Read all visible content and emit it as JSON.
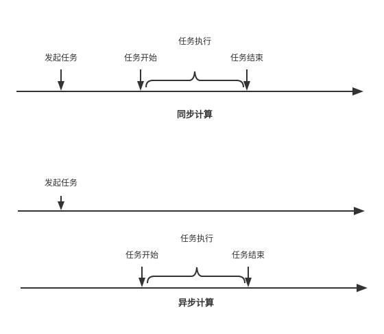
{
  "sync": {
    "title": "同步计算",
    "start_request_label": "发起任务",
    "task_start_label": "任务开始",
    "task_end_label": "任务结束",
    "execute_label": "任务执行"
  },
  "async": {
    "title": "异步计算",
    "start_request_label": "发起任务",
    "task_start_label": "任务开始",
    "task_end_label": "任务结束",
    "execute_label": "任务执行"
  }
}
